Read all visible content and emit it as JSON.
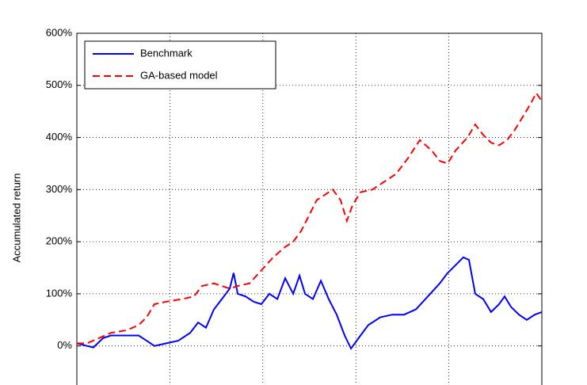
{
  "chart_data": {
    "type": "line",
    "y_label": "Accumulated return",
    "xlim": [
      0,
      2500
    ],
    "xticks": [
      500,
      1000,
      1500,
      2000
    ],
    "ylim": [
      -75,
      600
    ],
    "yticks": [
      {
        "value": 0,
        "label": "0%"
      },
      {
        "value": 100,
        "label": "100%"
      },
      {
        "value": 200,
        "label": "200%"
      },
      {
        "value": 300,
        "label": "300%"
      },
      {
        "value": 400,
        "label": "400%"
      },
      {
        "value": 500,
        "label": "500%"
      },
      {
        "value": 600,
        "label": "600%"
      }
    ],
    "grid": true,
    "legend": "upper left",
    "series": [
      {
        "name": "Benchmark",
        "color": "#0000ff",
        "dash": "solid",
        "x": [
          0,
          55,
          89,
          141,
          183,
          268,
          332,
          375,
          417,
          481,
          545,
          609,
          652,
          694,
          737,
          780,
          822,
          843,
          865,
          907,
          950,
          992,
          1035,
          1078,
          1120,
          1163,
          1197,
          1227,
          1269,
          1312,
          1354,
          1397,
          1440,
          1474,
          1525,
          1567,
          1631,
          1695,
          1759,
          1823,
          1887,
          1951,
          1993,
          2036,
          2078,
          2108,
          2142,
          2185,
          2227,
          2270,
          2300,
          2334,
          2377,
          2419,
          2462,
          2500
        ],
        "values": [
          5,
          0,
          -3,
          15,
          20,
          20,
          20,
          10,
          0,
          5,
          10,
          25,
          45,
          35,
          70,
          90,
          110,
          140,
          100,
          95,
          85,
          80,
          100,
          90,
          130,
          100,
          135,
          100,
          90,
          125,
          90,
          60,
          20,
          -5,
          20,
          40,
          55,
          60,
          60,
          70,
          95,
          120,
          140,
          155,
          170,
          165,
          100,
          90,
          65,
          80,
          95,
          75,
          60,
          50,
          60,
          65
        ]
      },
      {
        "name": "GA-based model",
        "color": "#ff0000",
        "dash": "dashed",
        "x": [
          0,
          55,
          119,
          183,
          268,
          332,
          375,
          417,
          481,
          566,
          630,
          673,
          737,
          822,
          865,
          928,
          992,
          1056,
          1120,
          1163,
          1205,
          1248,
          1290,
          1333,
          1376,
          1418,
          1452,
          1482,
          1525,
          1589,
          1652,
          1716,
          1780,
          1844,
          1908,
          1951,
          1993,
          2036,
          2100,
          2142,
          2185,
          2227,
          2270,
          2313,
          2355,
          2398,
          2440,
          2470,
          2500
        ],
        "values": [
          5,
          5,
          15,
          25,
          30,
          40,
          55,
          80,
          85,
          90,
          95,
          115,
          120,
          110,
          115,
          120,
          145,
          170,
          190,
          200,
          220,
          250,
          280,
          290,
          300,
          280,
          240,
          270,
          295,
          300,
          315,
          330,
          360,
          395,
          375,
          355,
          350,
          375,
          400,
          425,
          405,
          390,
          385,
          395,
          415,
          440,
          465,
          485,
          470
        ]
      }
    ]
  }
}
